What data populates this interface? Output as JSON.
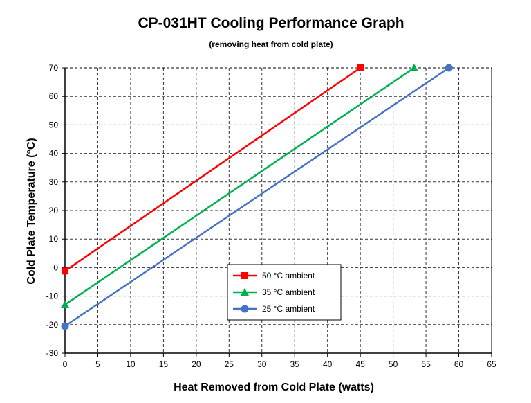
{
  "chart_data": {
    "type": "line",
    "title": "CP-031HT Cooling Performance Graph",
    "subtitle": "(removing heat from cold plate)",
    "xlabel": "Heat Removed from Cold Plate (watts)",
    "ylabel": "Cold Plate Temperature (°C)",
    "xlim": [
      0,
      65
    ],
    "ylim": [
      -30,
      70
    ],
    "xticks": [
      0,
      5,
      10,
      15,
      20,
      25,
      30,
      35,
      40,
      45,
      50,
      55,
      60,
      65
    ],
    "yticks": [
      -30,
      -20,
      -10,
      0,
      10,
      20,
      30,
      40,
      50,
      60,
      70
    ],
    "grid": true,
    "legend_position": "center",
    "series": [
      {
        "name": "50 °C ambient",
        "color": "#ff0000",
        "marker": "square",
        "x": [
          0,
          45
        ],
        "y": [
          -1.2,
          70
        ]
      },
      {
        "name": "35 °C ambient",
        "color": "#00b050",
        "marker": "triangle",
        "x": [
          0,
          53.2
        ],
        "y": [
          -13,
          70
        ]
      },
      {
        "name": "25 °C ambient",
        "color": "#4472c4",
        "marker": "circle",
        "x": [
          0,
          58.5
        ],
        "y": [
          -20.5,
          70
        ]
      }
    ]
  }
}
